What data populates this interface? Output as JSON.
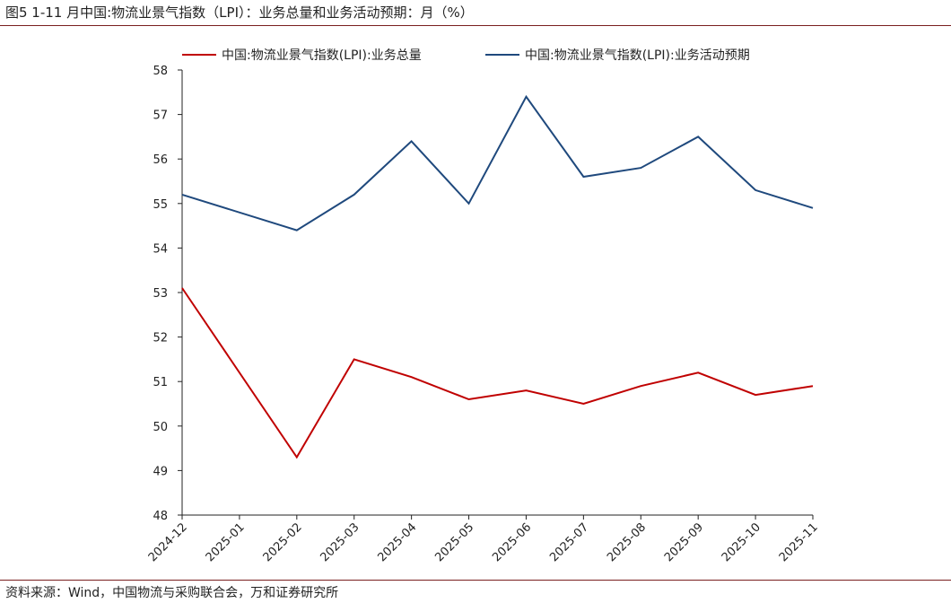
{
  "header": {
    "title": "图5   1-11 月中国:物流业景气指数（LPI）：业务总量和业务活动预期：月（%）"
  },
  "footer": {
    "source": "资料来源：Wind，中国物流与采购联合会，万和证券研究所"
  },
  "chart_data": {
    "type": "line",
    "title": "",
    "xlabel": "",
    "ylabel": "",
    "ylim": [
      48,
      58
    ],
    "yticks": [
      48,
      49,
      50,
      51,
      52,
      53,
      54,
      55,
      56,
      57,
      58
    ],
    "categories": [
      "2024-12",
      "2025-01",
      "2025-02",
      "2025-03",
      "2025-04",
      "2025-05",
      "2025-06",
      "2025-07",
      "2025-08",
      "2025-09",
      "2025-10",
      "2025-11"
    ],
    "grid": false,
    "legend_position": "top",
    "series": [
      {
        "name": "中国:物流业景气指数(LPI):业务总量",
        "color": "#c00000",
        "values": [
          53.1,
          null,
          49.3,
          51.5,
          51.1,
          50.6,
          50.8,
          50.5,
          50.9,
          51.2,
          50.7,
          50.9
        ]
      },
      {
        "name": "中国:物流业景气指数(LPI):业务活动预期",
        "color": "#1f497d",
        "values": [
          55.2,
          null,
          54.4,
          55.2,
          56.4,
          55.0,
          57.4,
          55.6,
          55.8,
          56.5,
          55.3,
          54.9
        ]
      }
    ]
  }
}
